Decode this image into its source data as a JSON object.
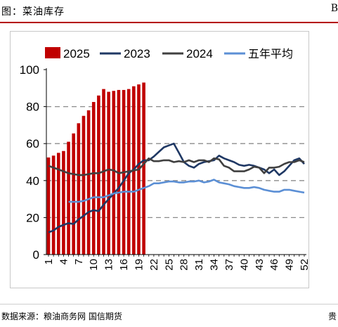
{
  "header": {
    "title": "图：菜油库存",
    "corner_mark": "B"
  },
  "footer": {
    "source": "数据来源：粮油商务网  国信期货",
    "corner_mark": "贵"
  },
  "colors": {
    "bar": "#c00000",
    "s2023": "#1f3864",
    "s2024": "#404040",
    "s5yr": "#5b8fd5",
    "grid": "#8c8c8c",
    "rule": "#b40000"
  },
  "chart_data": {
    "type": "bar",
    "x_ticks": [
      "1",
      "4",
      "7",
      "10",
      "13",
      "16",
      "19",
      "22",
      "25",
      "28",
      "31",
      "34",
      "37",
      "40",
      "43",
      "46",
      "49",
      "52"
    ],
    "ylim": [
      0,
      100
    ],
    "y_ticks": [
      "0",
      "20",
      "40",
      "60",
      "80",
      "100"
    ],
    "grid": "dashed horizontal at 20,40,60,80",
    "legend_position": "top",
    "series": [
      {
        "name": "2025",
        "kind": "bar",
        "x": [
          1,
          2,
          3,
          4,
          5,
          6,
          7,
          8,
          9,
          10,
          11,
          12,
          13,
          14,
          15,
          16,
          17,
          18,
          19,
          20
        ],
        "values": [
          52.5,
          53.5,
          55,
          56,
          61,
          65.5,
          71,
          75,
          78,
          82.5,
          86,
          89.5,
          88,
          88.5,
          89,
          89,
          89.5,
          91,
          92,
          93
        ]
      },
      {
        "name": "2023",
        "kind": "line",
        "x": [
          1,
          2,
          3,
          4,
          5,
          6,
          7,
          8,
          9,
          10,
          11,
          12,
          13,
          14,
          15,
          16,
          17,
          18,
          19,
          20,
          21,
          22,
          23,
          24,
          25,
          26,
          27,
          28,
          29,
          30,
          31,
          32,
          33,
          34,
          35,
          36,
          37,
          38,
          39,
          40,
          41,
          42,
          43,
          44,
          45,
          46,
          47,
          48,
          49,
          50,
          51,
          52
        ],
        "values": [
          12,
          13,
          15,
          16,
          17,
          16.5,
          19,
          21,
          23,
          24,
          23.5,
          27,
          30,
          33,
          36,
          40,
          44,
          46,
          49,
          51,
          51,
          53,
          55.5,
          58,
          59,
          60,
          55,
          50,
          48,
          47,
          49,
          50,
          50.5,
          51,
          53.5,
          52,
          51,
          50,
          48.5,
          48,
          48.5,
          48,
          47,
          46,
          44,
          46,
          43,
          45,
          48,
          51,
          52,
          49
        ]
      },
      {
        "name": "2024",
        "kind": "line",
        "x": [
          1,
          2,
          3,
          4,
          5,
          6,
          7,
          8,
          9,
          10,
          11,
          12,
          13,
          14,
          15,
          16,
          17,
          18,
          19,
          20,
          21,
          22,
          23,
          24,
          25,
          26,
          27,
          28,
          29,
          30,
          31,
          32,
          33,
          34,
          35,
          36,
          37,
          38,
          39,
          40,
          41,
          42,
          43,
          44,
          45,
          46,
          47,
          48,
          49,
          50,
          51,
          52
        ],
        "values": [
          48,
          47,
          46,
          45,
          44,
          43.5,
          43,
          43,
          43.5,
          44,
          44,
          45,
          46,
          45.5,
          44,
          44.5,
          45,
          45.5,
          46,
          49,
          52,
          50.5,
          50.5,
          51,
          51,
          50,
          50.5,
          50,
          51,
          50,
          51,
          51,
          50,
          52,
          51.5,
          48,
          47,
          45,
          45,
          45,
          46,
          47.5,
          47,
          44,
          47,
          47,
          47.5,
          49,
          50,
          50,
          51,
          50
        ]
      },
      {
        "name": "五年平均",
        "kind": "line",
        "x": [
          5,
          6,
          7,
          8,
          9,
          10,
          11,
          12,
          13,
          14,
          15,
          16,
          17,
          18,
          19,
          20,
          21,
          22,
          23,
          24,
          25,
          26,
          27,
          28,
          29,
          30,
          31,
          32,
          33,
          34,
          35,
          36,
          37,
          38,
          39,
          40,
          41,
          42,
          43,
          44,
          45,
          46,
          47,
          48,
          49,
          50,
          51,
          52
        ],
        "values": [
          28.5,
          28.5,
          28.5,
          29,
          30,
          31,
          31,
          31,
          32,
          33,
          33.5,
          34,
          34,
          34,
          35,
          36,
          37,
          38.5,
          38.5,
          39,
          39.5,
          39.5,
          39,
          39,
          39.5,
          39.5,
          40,
          39,
          39.5,
          40.5,
          39,
          38.5,
          38,
          37,
          36.5,
          36,
          36,
          36.5,
          36,
          35,
          34.5,
          34,
          34,
          35,
          35,
          34.5,
          34,
          33.5
        ]
      }
    ]
  }
}
